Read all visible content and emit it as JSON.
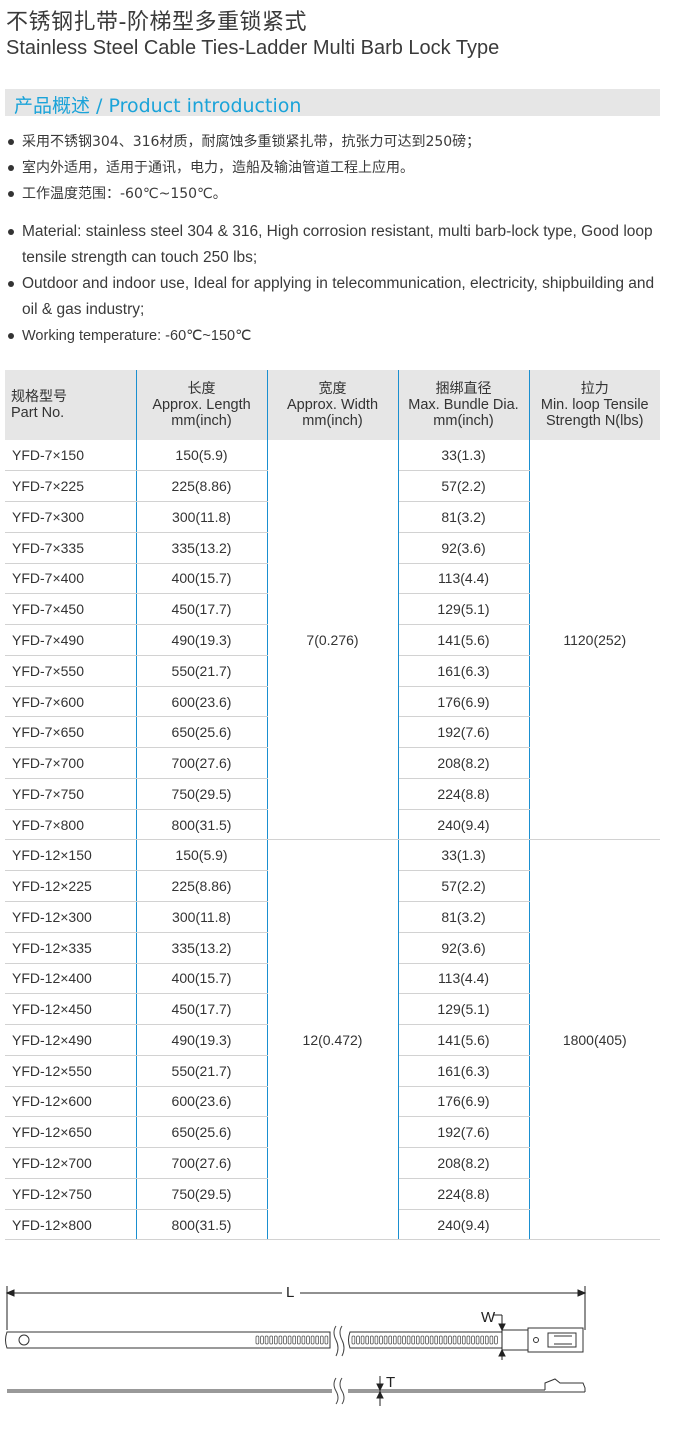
{
  "title_cn": "不锈钢扎带-阶梯型多重锁紧式",
  "title_en": "Stainless Steel Cable Ties-Ladder Multi Barb Lock Type",
  "section": "产品概述  / Product introduction",
  "bullets_cn": [
    "采用不锈钢304、316材质，耐腐蚀多重锁紧扎带，抗张力可达到250磅；",
    "室内外适用，适用于通讯，电力，造船及输油管道工程上应用。",
    "工作温度范围：-60℃~150℃。"
  ],
  "bullets_en": [
    "Material: stainless steel 304 & 316, High corrosion resistant, multi barb-lock type, Good loop tensile strength can touch 250 lbs;",
    "Outdoor and indoor use, Ideal for applying in telecommunication, electricity, shipbuilding and oil & gas industry;",
    "Working temperature: -60℃~150℃"
  ],
  "table": {
    "headers": [
      {
        "zh": "规格型号",
        "en": "Part No."
      },
      {
        "zh": "长度",
        "en": "Approx. Length",
        "unit": "mm(inch)"
      },
      {
        "zh": "宽度",
        "en": "Approx. Width",
        "unit": "mm(inch)"
      },
      {
        "zh": "捆绑直径",
        "en": "Max. Bundle Dia.",
        "unit": "mm(inch)"
      },
      {
        "zh": "拉力",
        "en": "Min. loop Tensile",
        "unit": "Strength N(lbs)"
      }
    ],
    "groups": [
      {
        "width": "7(0.276)",
        "tensile": "1120(252)",
        "rows": [
          [
            "YFD-7×150",
            "150(5.9)",
            "33(1.3)"
          ],
          [
            "YFD-7×225",
            "225(8.86)",
            "57(2.2)"
          ],
          [
            "YFD-7×300",
            "300(11.8)",
            "81(3.2)"
          ],
          [
            "YFD-7×335",
            "335(13.2)",
            "92(3.6)"
          ],
          [
            "YFD-7×400",
            "400(15.7)",
            "113(4.4)"
          ],
          [
            "YFD-7×450",
            "450(17.7)",
            "129(5.1)"
          ],
          [
            "YFD-7×490",
            "490(19.3)",
            "141(5.6)"
          ],
          [
            "YFD-7×550",
            "550(21.7)",
            "161(6.3)"
          ],
          [
            "YFD-7×600",
            "600(23.6)",
            "176(6.9)"
          ],
          [
            "YFD-7×650",
            "650(25.6)",
            "192(7.6)"
          ],
          [
            "YFD-7×700",
            "700(27.6)",
            "208(8.2)"
          ],
          [
            "YFD-7×750",
            "750(29.5)",
            "224(8.8)"
          ],
          [
            "YFD-7×800",
            "800(31.5)",
            "240(9.4)"
          ]
        ]
      },
      {
        "width": "12(0.472)",
        "tensile": "1800(405)",
        "rows": [
          [
            "YFD-12×150",
            "150(5.9)",
            "33(1.3)"
          ],
          [
            "YFD-12×225",
            "225(8.86)",
            "57(2.2)"
          ],
          [
            "YFD-12×300",
            "300(11.8)",
            "81(3.2)"
          ],
          [
            "YFD-12×335",
            "335(13.2)",
            "92(3.6)"
          ],
          [
            "YFD-12×400",
            "400(15.7)",
            "113(4.4)"
          ],
          [
            "YFD-12×450",
            "450(17.7)",
            "129(5.1)"
          ],
          [
            "YFD-12×490",
            "490(19.3)",
            "141(5.6)"
          ],
          [
            "YFD-12×550",
            "550(21.7)",
            "161(6.3)"
          ],
          [
            "YFD-12×600",
            "600(23.6)",
            "176(6.9)"
          ],
          [
            "YFD-12×650",
            "650(25.6)",
            "192(7.6)"
          ],
          [
            "YFD-12×700",
            "700(27.6)",
            "208(8.2)"
          ],
          [
            "YFD-12×750",
            "750(29.5)",
            "224(8.8)"
          ],
          [
            "YFD-12×800",
            "800(31.5)",
            "240(9.4)"
          ]
        ]
      }
    ]
  },
  "drawing": {
    "label_length": "L",
    "label_width": "W",
    "label_thickness": "T"
  },
  "colors": {
    "accent": "#1aa3d9",
    "header_bg": "#e6e6e6",
    "divider": "#1a8fd0"
  }
}
